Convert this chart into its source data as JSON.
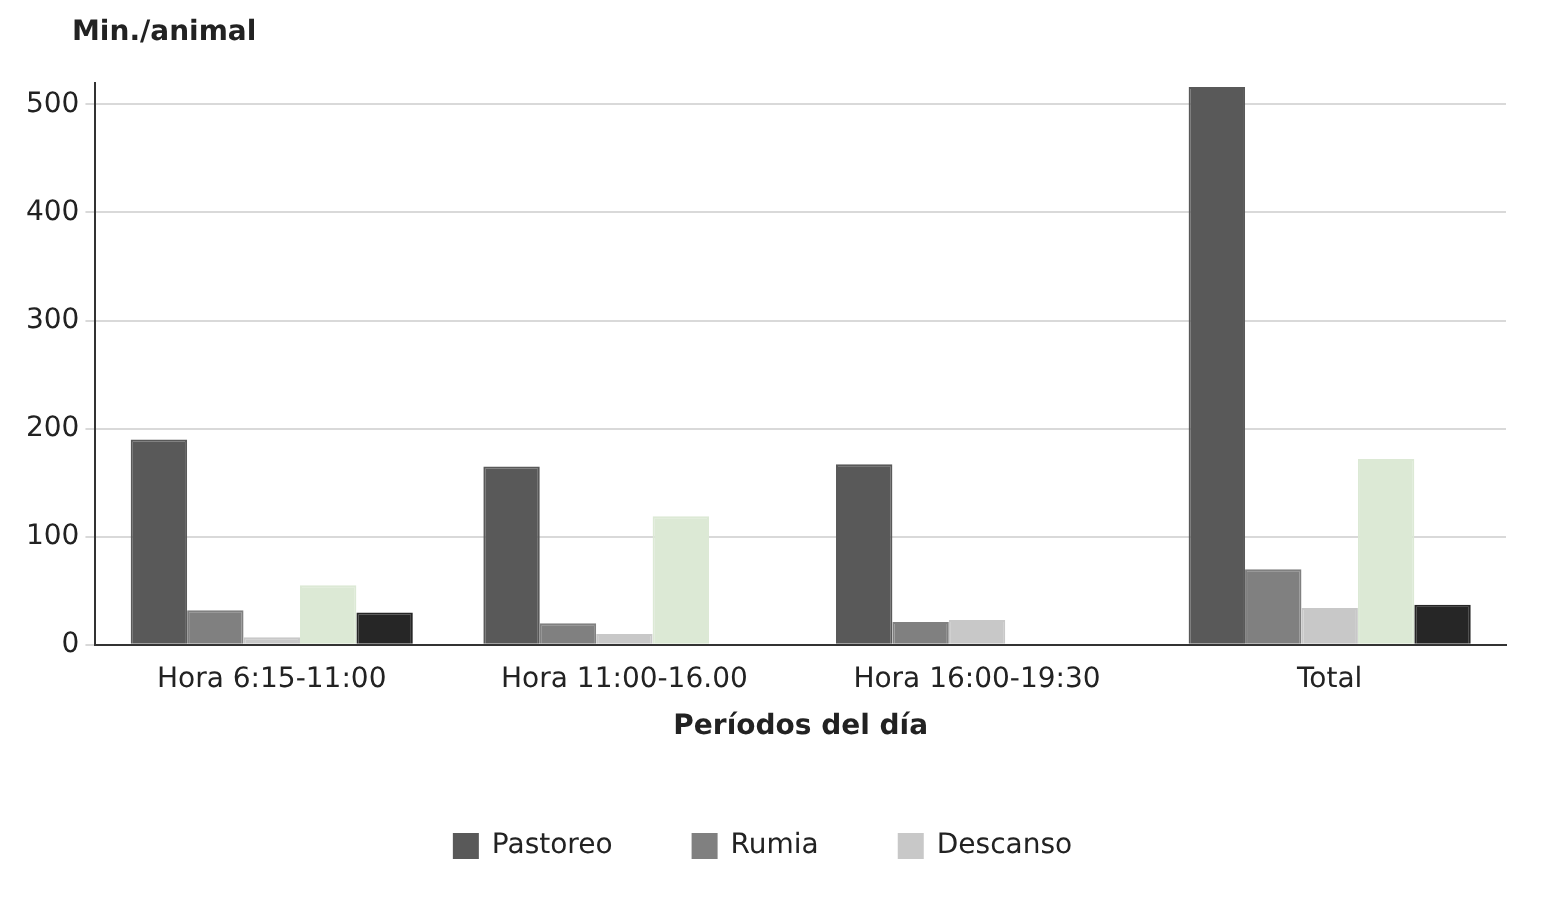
{
  "chart_data": {
    "type": "bar",
    "ylabel": "Min./animal",
    "xlabel": "Períodos del día",
    "categories": [
      "Hora 6:15-11:00",
      "Hora 11:00-16.00",
      "Hora 16:00-19:30",
      "Total"
    ],
    "series": [
      {
        "name": "Pastoreo",
        "color": "#595959",
        "values": [
          190,
          165,
          167,
          516
        ]
      },
      {
        "name": "Rumia",
        "color": "#808080",
        "values": [
          32,
          20,
          21,
          70
        ]
      },
      {
        "name": "Descanso",
        "color": "#c8c8c8",
        "values": [
          7,
          10,
          23,
          34
        ]
      },
      {
        "color": "#dce9d5",
        "values": [
          55,
          119,
          1,
          172
        ]
      },
      {
        "color": "#262626",
        "values": [
          30,
          0,
          0,
          37
        ]
      }
    ],
    "ylim": [
      0,
      520
    ],
    "yticks": [
      0,
      100,
      200,
      300,
      400,
      500
    ],
    "grid": "y",
    "legend": "bottom"
  }
}
